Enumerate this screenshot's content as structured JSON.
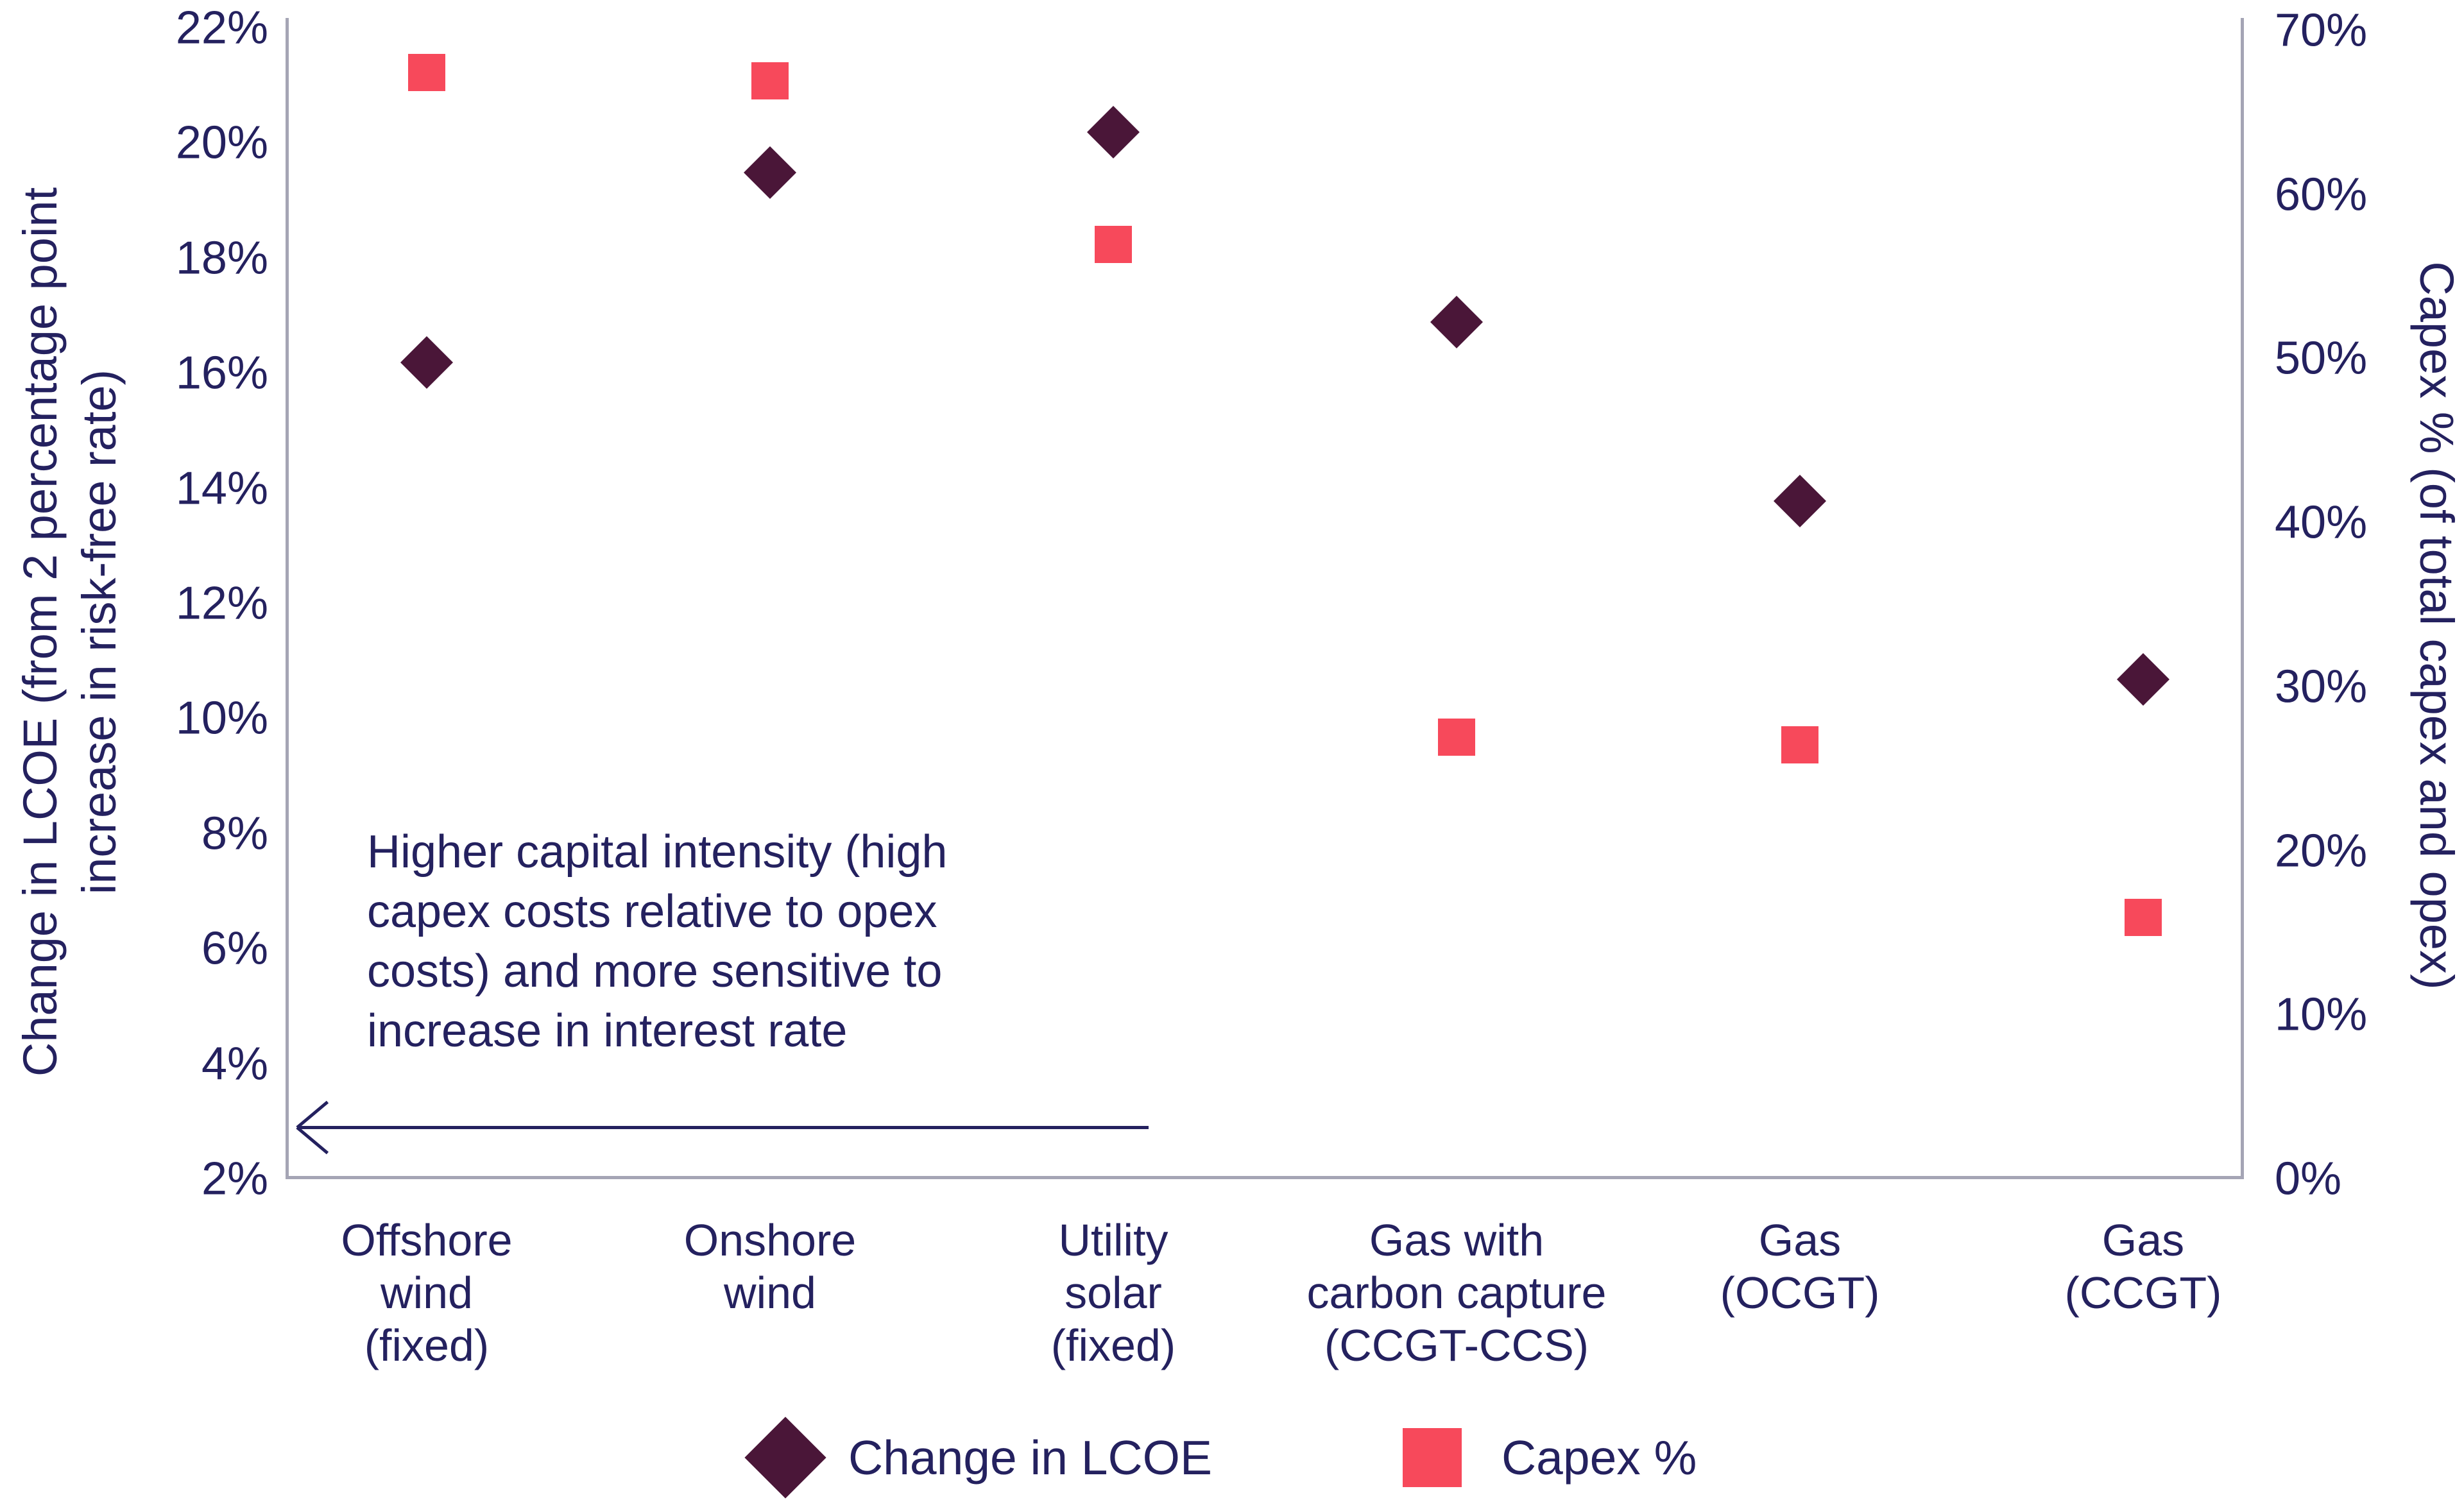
{
  "chart_data": {
    "type": "scatter",
    "categories": [
      "Offshore wind (fixed)",
      "Onshore wind",
      "Utility solar (fixed)",
      "Gas with carbon capture (CCGT-CCS)",
      "Gas (OCGT)",
      "Gas (CCGT)"
    ],
    "category_label_lines": [
      [
        "Offshore",
        "wind",
        "(fixed)"
      ],
      [
        "Onshore",
        "wind"
      ],
      [
        "Utility",
        "solar",
        "(fixed)"
      ],
      [
        "Gas with",
        "carbon capture",
        "(CCGT-CCS)"
      ],
      [
        "Gas",
        "(OCGT)"
      ],
      [
        "Gas",
        "(CCGT)"
      ]
    ],
    "series": [
      {
        "name": "Change in LCOE",
        "axis": "left",
        "marker": "diamond",
        "color": "#4a1638",
        "values": [
          16.2,
          19.5,
          20.2,
          16.9,
          13.8,
          10.7
        ]
      },
      {
        "name": "Capex %",
        "axis": "right",
        "marker": "square",
        "color": "#f7495b",
        "values": [
          67.5,
          67.0,
          57.0,
          27.0,
          26.5,
          16.0
        ]
      }
    ],
    "left_axis": {
      "label": "Change in LCOE (from 2 percentage point increase in risk-free rate)",
      "label_lines": [
        "Change in LCOE (from 2 percentage point",
        "increase in risk-free rate)"
      ],
      "min": 2,
      "max": 22,
      "step": 2,
      "ticks": [
        "22%",
        "20%",
        "18%",
        "16%",
        "14%",
        "12%",
        "10%",
        "8%",
        "6%",
        "4%",
        "2%"
      ],
      "tick_values": [
        22,
        20,
        18,
        16,
        14,
        12,
        10,
        8,
        6,
        4,
        2
      ]
    },
    "right_axis": {
      "label": "Capex % (of total capex and opex)",
      "min": 0,
      "max": 70,
      "step": 10,
      "ticks": [
        "70%",
        "60%",
        "50%",
        "40%",
        "30%",
        "20%",
        "10%",
        "0%"
      ],
      "tick_values": [
        70,
        60,
        50,
        40,
        30,
        20,
        10,
        0
      ]
    },
    "annotation": {
      "text": "Higher capital intensity (high capex costs relative to opex costs) and more sensitive to increase in interest rate",
      "lines": [
        "Higher capital intensity (high",
        "capex costs relative to opex",
        "costs) and more sensitive to",
        "increase in interest rate"
      ],
      "arrow_direction": "left"
    },
    "legend": [
      {
        "label": "Change in LCOE",
        "marker": "diamond",
        "color": "#4a1638"
      },
      {
        "label": "Capex %",
        "marker": "square",
        "color": "#f7495b"
      }
    ],
    "grid": false,
    "legend_position": "bottom"
  },
  "colors": {
    "diamond": "#4a1638",
    "square": "#f7495b",
    "text": "#24215f",
    "axis_line": "#a5a5b5",
    "background": "#ffffff"
  }
}
